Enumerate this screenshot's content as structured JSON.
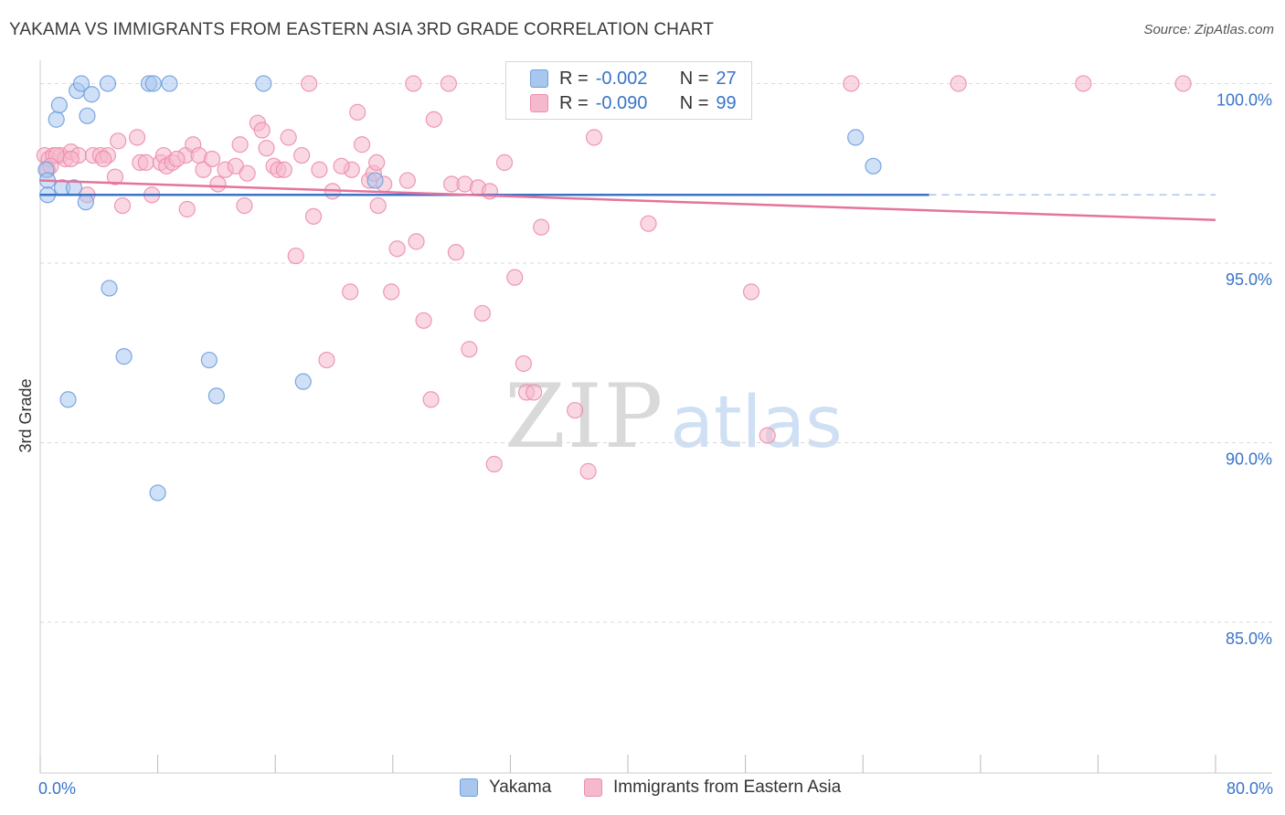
{
  "header": {
    "title": "YAKAMA VS IMMIGRANTS FROM EASTERN ASIA 3RD GRADE CORRELATION CHART",
    "source": "Source: ZipAtlas.com"
  },
  "legend": {
    "rows": [
      {
        "r_label": "R =",
        "r_value": "-0.002",
        "n_label": "N =",
        "n_value": "27"
      },
      {
        "r_label": "R =",
        "r_value": "-0.090",
        "n_label": "N =",
        "n_value": "99"
      }
    ]
  },
  "watermark": {
    "zip": "ZIP",
    "atlas": "atlas"
  },
  "colors": {
    "blue_fill": "#a9c6ef",
    "blue_stroke": "#6f9fdc",
    "blue_line": "#3a74c9",
    "pink_fill": "#f6b8cc",
    "pink_stroke": "#ec8eab",
    "pink_line": "#e5739b",
    "grid": "#d9d9d9",
    "tick_label": "#3a74c9"
  },
  "chart_data": {
    "type": "scatter",
    "title": "YAKAMA VS IMMIGRANTS FROM EASTERN ASIA 3RD GRADE CORRELATION CHART",
    "xlabel": "",
    "ylabel": "3rd Grade",
    "xlim": [
      0,
      80
    ],
    "ylim": [
      80.8,
      100.8
    ],
    "x_tick_labels": [
      {
        "value": 0,
        "label": "0.0%"
      },
      {
        "value": 80,
        "label": "80.0%"
      }
    ],
    "x_minor_ticks": [
      0,
      8,
      16,
      24,
      32,
      40,
      48,
      56,
      64,
      72,
      80
    ],
    "y_ticks": [
      {
        "value": 100,
        "label": "100.0%"
      },
      {
        "value": 95,
        "label": "95.0%"
      },
      {
        "value": 90,
        "label": "90.0%"
      },
      {
        "value": 85,
        "label": "85.0%"
      }
    ],
    "grid": "horizontal dashed",
    "legend_position": "bottom",
    "series": [
      {
        "name": "Yakama",
        "color": "#a9c6ef",
        "trend": {
          "x0": 0,
          "y0": 96.9,
          "x1": 60.5,
          "y1": 96.9,
          "dashed_to": 80
        },
        "points": [
          [
            0.4,
            97.6
          ],
          [
            0.5,
            97.3
          ],
          [
            0.5,
            96.9
          ],
          [
            1.1,
            99.0
          ],
          [
            1.3,
            99.4
          ],
          [
            1.5,
            97.1
          ],
          [
            1.9,
            91.2
          ],
          [
            2.3,
            97.1
          ],
          [
            2.5,
            99.8
          ],
          [
            2.8,
            100.0
          ],
          [
            3.2,
            99.1
          ],
          [
            3.1,
            96.7
          ],
          [
            3.5,
            99.7
          ],
          [
            4.6,
            100.0
          ],
          [
            4.7,
            94.3
          ],
          [
            5.7,
            92.4
          ],
          [
            7.4,
            100.0
          ],
          [
            7.7,
            100.0
          ],
          [
            8.0,
            88.6
          ],
          [
            8.8,
            100.0
          ],
          [
            11.5,
            92.3
          ],
          [
            12.0,
            91.3
          ],
          [
            15.2,
            100.0
          ],
          [
            17.9,
            91.7
          ],
          [
            22.8,
            97.3
          ],
          [
            55.5,
            98.5
          ],
          [
            56.7,
            97.7
          ]
        ]
      },
      {
        "name": "Immigrants from Eastern Asia",
        "color": "#f6b8cc",
        "trend": {
          "x0": 0,
          "y0": 97.3,
          "x1": 80,
          "y1": 96.2
        },
        "points": [
          [
            0.3,
            98.0
          ],
          [
            0.5,
            97.6
          ],
          [
            0.6,
            97.9
          ],
          [
            0.9,
            98.0
          ],
          [
            1.4,
            98.0
          ],
          [
            1.7,
            97.9
          ],
          [
            2.1,
            98.1
          ],
          [
            2.6,
            98.0
          ],
          [
            3.2,
            96.9
          ],
          [
            3.6,
            98.0
          ],
          [
            4.1,
            98.0
          ],
          [
            4.6,
            98.0
          ],
          [
            5.1,
            97.4
          ],
          [
            5.3,
            98.4
          ],
          [
            5.6,
            96.6
          ],
          [
            6.6,
            98.5
          ],
          [
            6.8,
            97.8
          ],
          [
            7.2,
            97.8
          ],
          [
            7.6,
            96.9
          ],
          [
            8.2,
            97.8
          ],
          [
            8.4,
            98.0
          ],
          [
            8.6,
            97.7
          ],
          [
            9.0,
            97.8
          ],
          [
            9.9,
            98.0
          ],
          [
            10.0,
            96.5
          ],
          [
            10.4,
            98.3
          ],
          [
            10.8,
            98.0
          ],
          [
            11.1,
            97.6
          ],
          [
            11.7,
            97.9
          ],
          [
            12.1,
            97.2
          ],
          [
            12.6,
            97.6
          ],
          [
            13.3,
            97.7
          ],
          [
            13.6,
            98.3
          ],
          [
            13.9,
            96.6
          ],
          [
            14.1,
            97.5
          ],
          [
            14.8,
            98.9
          ],
          [
            15.1,
            98.7
          ],
          [
            15.4,
            98.2
          ],
          [
            15.9,
            97.7
          ],
          [
            16.2,
            97.6
          ],
          [
            16.6,
            97.6
          ],
          [
            16.9,
            98.5
          ],
          [
            17.4,
            95.2
          ],
          [
            17.8,
            98.0
          ],
          [
            18.6,
            96.3
          ],
          [
            19.0,
            97.6
          ],
          [
            19.5,
            92.3
          ],
          [
            19.9,
            97.0
          ],
          [
            21.1,
            94.2
          ],
          [
            21.2,
            97.6
          ],
          [
            21.6,
            99.2
          ],
          [
            21.9,
            98.3
          ],
          [
            22.4,
            97.3
          ],
          [
            22.7,
            97.5
          ],
          [
            22.9,
            97.8
          ],
          [
            23.0,
            96.6
          ],
          [
            23.4,
            97.2
          ],
          [
            23.9,
            94.2
          ],
          [
            24.3,
            95.4
          ],
          [
            25.0,
            97.3
          ],
          [
            25.4,
            100.0
          ],
          [
            25.6,
            95.6
          ],
          [
            26.1,
            93.4
          ],
          [
            26.6,
            91.2
          ],
          [
            26.8,
            99.0
          ],
          [
            27.8,
            100.0
          ],
          [
            28.0,
            97.2
          ],
          [
            28.3,
            95.3
          ],
          [
            28.9,
            97.2
          ],
          [
            29.2,
            92.6
          ],
          [
            29.8,
            97.1
          ],
          [
            30.1,
            93.6
          ],
          [
            30.6,
            97.0
          ],
          [
            30.9,
            89.4
          ],
          [
            31.6,
            97.8
          ],
          [
            32.3,
            94.6
          ],
          [
            32.9,
            92.2
          ],
          [
            33.1,
            91.4
          ],
          [
            33.6,
            91.4
          ],
          [
            34.1,
            96.0
          ],
          [
            36.4,
            90.9
          ],
          [
            37.3,
            89.2
          ],
          [
            37.7,
            98.5
          ],
          [
            41.4,
            96.1
          ],
          [
            42.5,
            100.0
          ],
          [
            48.4,
            94.2
          ],
          [
            49.5,
            90.2
          ],
          [
            55.2,
            100.0
          ],
          [
            62.5,
            100.0
          ],
          [
            71.0,
            100.0
          ],
          [
            77.8,
            100.0
          ],
          [
            37.5,
            100.0
          ],
          [
            18.3,
            100.0
          ],
          [
            20.5,
            97.7
          ],
          [
            9.3,
            97.9
          ],
          [
            1.1,
            98.0
          ],
          [
            2.1,
            97.9
          ],
          [
            4.3,
            97.9
          ],
          [
            0.7,
            97.7
          ]
        ]
      }
    ]
  }
}
